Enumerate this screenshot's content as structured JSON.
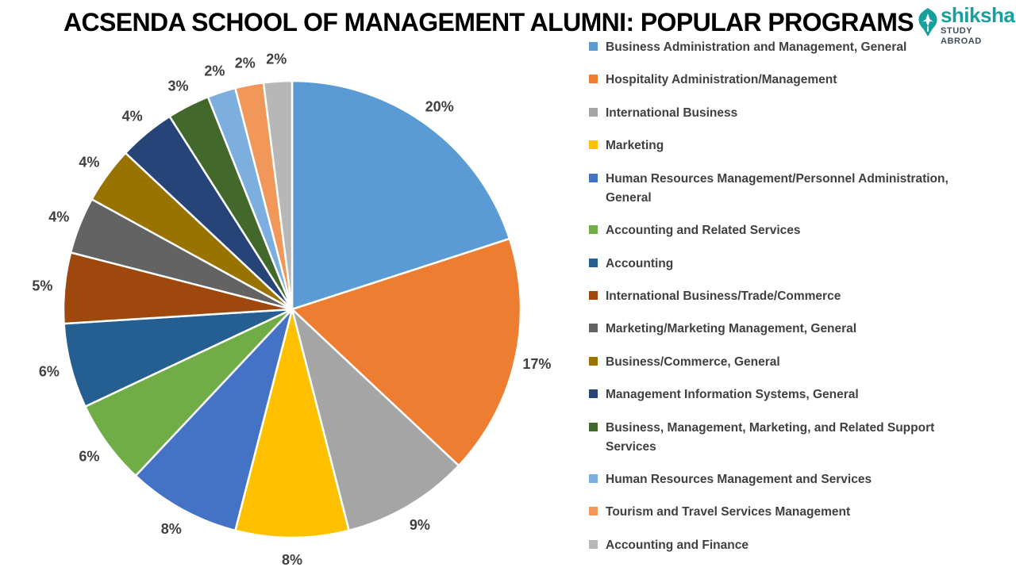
{
  "header": {
    "title": "ACSENDA SCHOOL OF MANAGEMENT ALUMNI: POPULAR PROGRAMS",
    "logo": {
      "brand": "shiksha",
      "tagline": "STUDY ABROAD",
      "brand_color": "#17A09B",
      "tagline_color": "#3D4F58"
    }
  },
  "chart_data": {
    "type": "pie",
    "title": "ACSENDA SCHOOL OF MANAGEMENT ALUMNI: POPULAR PROGRAMS",
    "unit": "%",
    "start_angle_deg": 0,
    "direction": "clockwise",
    "legend_position": "right",
    "slice_border_color": "#FFFFFF",
    "label_color": "#404040",
    "categories": [
      "Business Administration and Management, General",
      "Hospitality Administration/Management",
      "International Business",
      "Marketing",
      "Human Resources Management/Personnel Administration, General",
      "Accounting and Related Services",
      "Accounting",
      "International Business/Trade/Commerce",
      "Marketing/Marketing Management, General",
      "Business/Commerce, General",
      "Management Information Systems, General",
      "Business, Management, Marketing, and Related Support Services",
      "Human Resources Management and Services",
      "Tourism and Travel Services Management",
      "Accounting and Finance"
    ],
    "values": [
      20,
      17,
      9,
      8,
      8,
      6,
      6,
      5,
      4,
      4,
      4,
      3,
      2,
      2,
      2
    ],
    "data_labels": [
      "20%",
      "17%",
      "9%",
      "8%",
      "8%",
      "6%",
      "6%",
      "5%",
      "4%",
      "4%",
      "4%",
      "3%",
      "2%",
      "2%",
      "2%"
    ],
    "colors": [
      "#5B9BD5",
      "#ED7D31",
      "#A5A5A5",
      "#FFC000",
      "#4472C4",
      "#70AD47",
      "#255E91",
      "#9E480E",
      "#636363",
      "#997300",
      "#264478",
      "#43682B",
      "#7CAFDD",
      "#F1975A",
      "#B7B7B7"
    ]
  }
}
